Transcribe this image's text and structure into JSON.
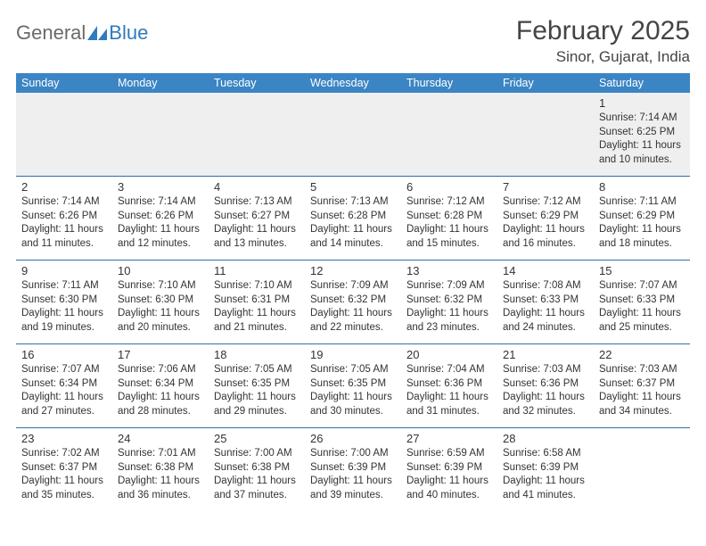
{
  "logo": {
    "part1": "General",
    "part2": "Blue"
  },
  "title": "February 2025",
  "location": "Sinor, Gujarat, India",
  "day_names": [
    "Sunday",
    "Monday",
    "Tuesday",
    "Wednesday",
    "Thursday",
    "Friday",
    "Saturday"
  ],
  "header_bg": "#3b85c4",
  "border_color": "#2f6fa8",
  "weeks": [
    [
      null,
      null,
      null,
      null,
      null,
      null,
      {
        "n": "1",
        "sr": "7:14 AM",
        "ss": "6:25 PM",
        "dl": "11 hours and 10 minutes."
      }
    ],
    [
      {
        "n": "2",
        "sr": "7:14 AM",
        "ss": "6:26 PM",
        "dl": "11 hours and 11 minutes."
      },
      {
        "n": "3",
        "sr": "7:14 AM",
        "ss": "6:26 PM",
        "dl": "11 hours and 12 minutes."
      },
      {
        "n": "4",
        "sr": "7:13 AM",
        "ss": "6:27 PM",
        "dl": "11 hours and 13 minutes."
      },
      {
        "n": "5",
        "sr": "7:13 AM",
        "ss": "6:28 PM",
        "dl": "11 hours and 14 minutes."
      },
      {
        "n": "6",
        "sr": "7:12 AM",
        "ss": "6:28 PM",
        "dl": "11 hours and 15 minutes."
      },
      {
        "n": "7",
        "sr": "7:12 AM",
        "ss": "6:29 PM",
        "dl": "11 hours and 16 minutes."
      },
      {
        "n": "8",
        "sr": "7:11 AM",
        "ss": "6:29 PM",
        "dl": "11 hours and 18 minutes."
      }
    ],
    [
      {
        "n": "9",
        "sr": "7:11 AM",
        "ss": "6:30 PM",
        "dl": "11 hours and 19 minutes."
      },
      {
        "n": "10",
        "sr": "7:10 AM",
        "ss": "6:30 PM",
        "dl": "11 hours and 20 minutes."
      },
      {
        "n": "11",
        "sr": "7:10 AM",
        "ss": "6:31 PM",
        "dl": "11 hours and 21 minutes."
      },
      {
        "n": "12",
        "sr": "7:09 AM",
        "ss": "6:32 PM",
        "dl": "11 hours and 22 minutes."
      },
      {
        "n": "13",
        "sr": "7:09 AM",
        "ss": "6:32 PM",
        "dl": "11 hours and 23 minutes."
      },
      {
        "n": "14",
        "sr": "7:08 AM",
        "ss": "6:33 PM",
        "dl": "11 hours and 24 minutes."
      },
      {
        "n": "15",
        "sr": "7:07 AM",
        "ss": "6:33 PM",
        "dl": "11 hours and 25 minutes."
      }
    ],
    [
      {
        "n": "16",
        "sr": "7:07 AM",
        "ss": "6:34 PM",
        "dl": "11 hours and 27 minutes."
      },
      {
        "n": "17",
        "sr": "7:06 AM",
        "ss": "6:34 PM",
        "dl": "11 hours and 28 minutes."
      },
      {
        "n": "18",
        "sr": "7:05 AM",
        "ss": "6:35 PM",
        "dl": "11 hours and 29 minutes."
      },
      {
        "n": "19",
        "sr": "7:05 AM",
        "ss": "6:35 PM",
        "dl": "11 hours and 30 minutes."
      },
      {
        "n": "20",
        "sr": "7:04 AM",
        "ss": "6:36 PM",
        "dl": "11 hours and 31 minutes."
      },
      {
        "n": "21",
        "sr": "7:03 AM",
        "ss": "6:36 PM",
        "dl": "11 hours and 32 minutes."
      },
      {
        "n": "22",
        "sr": "7:03 AM",
        "ss": "6:37 PM",
        "dl": "11 hours and 34 minutes."
      }
    ],
    [
      {
        "n": "23",
        "sr": "7:02 AM",
        "ss": "6:37 PM",
        "dl": "11 hours and 35 minutes."
      },
      {
        "n": "24",
        "sr": "7:01 AM",
        "ss": "6:38 PM",
        "dl": "11 hours and 36 minutes."
      },
      {
        "n": "25",
        "sr": "7:00 AM",
        "ss": "6:38 PM",
        "dl": "11 hours and 37 minutes."
      },
      {
        "n": "26",
        "sr": "7:00 AM",
        "ss": "6:39 PM",
        "dl": "11 hours and 39 minutes."
      },
      {
        "n": "27",
        "sr": "6:59 AM",
        "ss": "6:39 PM",
        "dl": "11 hours and 40 minutes."
      },
      {
        "n": "28",
        "sr": "6:58 AM",
        "ss": "6:39 PM",
        "dl": "11 hours and 41 minutes."
      },
      null
    ]
  ],
  "labels": {
    "sunrise": "Sunrise:",
    "sunset": "Sunset:",
    "daylight": "Daylight:"
  }
}
